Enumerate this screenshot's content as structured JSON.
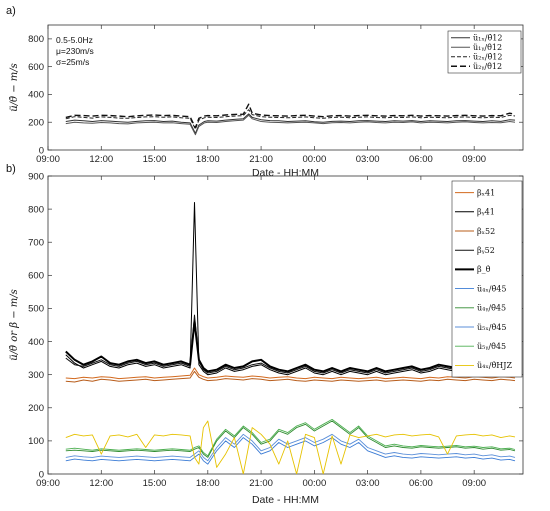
{
  "chart_data": [
    {
      "panel_label": "a)",
      "type": "line",
      "xlabel": "Date - HH:MM",
      "ylabel": "ü/θ̇ − m/s",
      "ylim": [
        0,
        900
      ],
      "yticks": [
        0,
        200,
        400,
        600,
        800
      ],
      "xlim": [
        9,
        35.75
      ],
      "xticks": [
        9,
        12,
        15,
        18,
        21,
        24,
        27,
        30,
        33,
        36
      ],
      "xticklabels": [
        "09:00",
        "12:00",
        "15:00",
        "18:00",
        "21:00",
        "00:00",
        "03:00",
        "06:00",
        "09:00",
        "12:00"
      ],
      "annotations": [
        "0.5-5.0Hz",
        "μ=230m/s",
        "σ=25m/s"
      ],
      "legend_position": "top-right",
      "x": [
        10.0,
        10.5,
        11.0,
        11.5,
        12.0,
        12.5,
        13.0,
        13.5,
        14.0,
        14.5,
        15.0,
        15.5,
        16.0,
        16.5,
        17.0,
        17.3,
        17.5,
        17.8,
        18.0,
        18.5,
        19.0,
        19.5,
        20.0,
        20.3,
        20.5,
        21.0,
        21.5,
        22.0,
        22.5,
        23.0,
        23.5,
        24.0,
        24.5,
        25.0,
        25.5,
        26.0,
        26.5,
        27.0,
        27.5,
        28.0,
        28.5,
        29.0,
        29.5,
        30.0,
        30.5,
        31.0,
        31.5,
        32.0,
        32.5,
        33.0,
        33.5,
        34.0,
        34.5,
        35.0,
        35.3
      ],
      "series": [
        {
          "name": "ü₁ₓ/θ̇12",
          "color": "#333333",
          "dash": "solid",
          "width": 1.0,
          "values": [
            205,
            215,
            210,
            205,
            212,
            208,
            204,
            200,
            206,
            210,
            212,
            205,
            208,
            200,
            195,
            120,
            180,
            205,
            210,
            208,
            215,
            220,
            225,
            260,
            235,
            218,
            212,
            210,
            205,
            208,
            210,
            204,
            200,
            206,
            208,
            205,
            210,
            212,
            208,
            205,
            210,
            208,
            212,
            205,
            210,
            208,
            205,
            210,
            212,
            208,
            205,
            210,
            206,
            218,
            215
          ]
        },
        {
          "name": "ü₁ᵧ/θ̇12",
          "color": "#555555",
          "dash": "solid",
          "width": 1.0,
          "values": [
            190,
            200,
            195,
            192,
            198,
            195,
            190,
            188,
            195,
            198,
            200,
            195,
            196,
            190,
            185,
            110,
            170,
            195,
            200,
            198,
            205,
            210,
            215,
            250,
            225,
            205,
            200,
            198,
            195,
            198,
            200,
            195,
            190,
            196,
            198,
            195,
            200,
            202,
            198,
            195,
            200,
            198,
            202,
            195,
            200,
            198,
            195,
            200,
            202,
            198,
            195,
            198,
            196,
            205,
            200
          ]
        },
        {
          "name": "ü₂ₓ/θ̇12",
          "color": "#222222",
          "dash": "4,2",
          "width": 1.0,
          "values": [
            225,
            240,
            235,
            230,
            238,
            235,
            230,
            228,
            234,
            238,
            240,
            236,
            238,
            232,
            228,
            150,
            215,
            232,
            236,
            234,
            240,
            244,
            248,
            290,
            255,
            240,
            236,
            234,
            232,
            235,
            238,
            232,
            228,
            234,
            236,
            232,
            236,
            238,
            234,
            232,
            236,
            234,
            238,
            232,
            236,
            234,
            232,
            236,
            238,
            234,
            232,
            236,
            234,
            250,
            245
          ]
        },
        {
          "name": "ü₂ᵧ/θ̇12",
          "color": "#111111",
          "dash": "6,3",
          "width": 1.4,
          "values": [
            235,
            250,
            248,
            244,
            250,
            248,
            244,
            240,
            246,
            250,
            252,
            248,
            250,
            244,
            240,
            160,
            228,
            244,
            248,
            246,
            252,
            256,
            258,
            330,
            265,
            252,
            248,
            246,
            244,
            248,
            250,
            244,
            240,
            246,
            248,
            244,
            248,
            250,
            246,
            244,
            248,
            246,
            250,
            244,
            248,
            246,
            244,
            248,
            250,
            246,
            244,
            248,
            246,
            265,
            258
          ]
        }
      ]
    },
    {
      "panel_label": "b)",
      "type": "line",
      "xlabel": "Date - HH:MM",
      "ylabel": "ü/θ̇ or β − m/s",
      "ylim": [
        0,
        900
      ],
      "yticks": [
        0,
        100,
        200,
        300,
        400,
        500,
        600,
        700,
        800,
        900
      ],
      "xlim": [
        9,
        35.75
      ],
      "xticks": [
        9,
        12,
        15,
        18,
        21,
        24,
        27,
        30,
        33,
        36
      ],
      "xticklabels": [
        "09:00",
        "12:00",
        "15:00",
        "18:00",
        "21:00",
        "00:00",
        "03:00",
        "06:00",
        "09:00",
        "12:00"
      ],
      "legend_position": "top-right",
      "x": [
        10.0,
        10.5,
        11.0,
        11.5,
        12.0,
        12.5,
        13.0,
        13.5,
        14.0,
        14.5,
        15.0,
        15.5,
        16.0,
        16.5,
        17.0,
        17.25,
        17.5,
        17.75,
        18.0,
        18.5,
        19.0,
        19.5,
        20.0,
        20.5,
        21.0,
        21.5,
        22.0,
        22.5,
        23.0,
        23.5,
        24.0,
        24.5,
        25.0,
        25.5,
        26.0,
        26.5,
        27.0,
        27.5,
        28.0,
        28.5,
        29.0,
        29.5,
        30.0,
        30.5,
        31.0,
        31.5,
        32.0,
        32.5,
        33.0,
        33.5,
        34.0,
        34.5,
        35.0,
        35.3
      ],
      "series": [
        {
          "name": "βₓ41",
          "color": "#d2691e",
          "dash": "solid",
          "width": 1.0,
          "values": [
            290,
            288,
            292,
            290,
            294,
            292,
            288,
            290,
            292,
            294,
            290,
            292,
            294,
            296,
            298,
            320,
            300,
            294,
            290,
            292,
            296,
            294,
            292,
            296,
            294,
            290,
            292,
            294,
            290,
            288,
            292,
            290,
            288,
            292,
            290,
            288,
            290,
            292,
            288,
            290,
            292,
            290,
            288,
            292,
            290,
            294,
            292,
            290,
            294,
            292,
            290,
            294,
            292,
            290
          ]
        },
        {
          "name": "βᵧ41",
          "color": "#000000",
          "dash": "solid",
          "width": 1.0,
          "values": [
            360,
            335,
            320,
            330,
            340,
            325,
            320,
            330,
            335,
            325,
            330,
            320,
            325,
            330,
            320,
            820,
            330,
            310,
            300,
            305,
            320,
            310,
            315,
            325,
            330,
            315,
            305,
            300,
            310,
            320,
            305,
            300,
            310,
            300,
            310,
            305,
            300,
            310,
            300,
            305,
            310,
            315,
            305,
            310,
            320,
            315,
            310,
            325,
            340,
            350,
            330,
            335,
            340,
            320
          ]
        },
        {
          "name": "βₓ52",
          "color": "#b85c1a",
          "dash": "solid",
          "width": 1.0,
          "values": [
            280,
            278,
            284,
            280,
            286,
            284,
            280,
            282,
            284,
            286,
            282,
            284,
            286,
            288,
            290,
            310,
            292,
            286,
            282,
            284,
            288,
            286,
            284,
            288,
            286,
            282,
            284,
            286,
            282,
            280,
            284,
            282,
            280,
            284,
            282,
            280,
            282,
            284,
            280,
            282,
            284,
            282,
            280,
            284,
            282,
            286,
            284,
            282,
            286,
            284,
            282,
            286,
            284,
            282
          ]
        },
        {
          "name": "βᵧ52",
          "color": "#111111",
          "dash": "solid",
          "width": 1.0,
          "values": [
            350,
            330,
            325,
            335,
            345,
            330,
            325,
            335,
            340,
            330,
            335,
            325,
            330,
            335,
            325,
            480,
            340,
            315,
            305,
            310,
            325,
            315,
            320,
            330,
            335,
            320,
            310,
            305,
            315,
            325,
            310,
            305,
            315,
            305,
            315,
            310,
            305,
            315,
            305,
            310,
            315,
            320,
            310,
            315,
            325,
            320,
            315,
            330,
            345,
            355,
            335,
            340,
            345,
            325
          ]
        },
        {
          "name": "β_θ̇",
          "color": "#000000",
          "dash": "solid",
          "width": 2.0,
          "values": [
            370,
            345,
            330,
            340,
            355,
            335,
            330,
            340,
            345,
            335,
            340,
            330,
            335,
            340,
            330,
            460,
            345,
            320,
            310,
            315,
            330,
            320,
            325,
            340,
            345,
            325,
            315,
            310,
            320,
            330,
            315,
            310,
            320,
            310,
            320,
            315,
            310,
            320,
            310,
            315,
            320,
            325,
            315,
            320,
            330,
            325,
            320,
            335,
            350,
            360,
            340,
            345,
            350,
            330
          ]
        },
        {
          "name": "ü₄ₓ/θ̇45",
          "color": "#3a7bd5",
          "dash": "solid",
          "width": 0.9,
          "values": [
            40,
            45,
            42,
            40,
            44,
            42,
            40,
            42,
            44,
            42,
            40,
            42,
            44,
            42,
            40,
            50,
            60,
            40,
            30,
            70,
            100,
            80,
            110,
            90,
            60,
            70,
            95,
            80,
            90,
            100,
            85,
            95,
            110,
            90,
            80,
            95,
            70,
            60,
            50,
            55,
            50,
            48,
            52,
            50,
            48,
            50,
            52,
            48,
            50,
            45,
            48,
            42,
            44,
            40
          ]
        },
        {
          "name": "ü₄ᵧ/θ̇45",
          "color": "#2e8b2e",
          "dash": "solid",
          "width": 0.9,
          "values": [
            70,
            72,
            70,
            68,
            72,
            70,
            68,
            70,
            72,
            70,
            68,
            70,
            72,
            70,
            68,
            75,
            80,
            60,
            50,
            100,
            130,
            110,
            140,
            120,
            90,
            100,
            130,
            120,
            140,
            150,
            130,
            145,
            160,
            140,
            120,
            140,
            110,
            95,
            80,
            85,
            80,
            78,
            82,
            80,
            78,
            80,
            82,
            78,
            80,
            75,
            78,
            72,
            74,
            70
          ]
        },
        {
          "name": "ü₅ₓ/θ̇45",
          "color": "#5b8fd9",
          "dash": "solid",
          "width": 0.9,
          "values": [
            50,
            55,
            52,
            50,
            54,
            52,
            50,
            52,
            54,
            52,
            50,
            52,
            54,
            52,
            50,
            60,
            70,
            50,
            40,
            80,
            110,
            90,
            120,
            100,
            70,
            80,
            105,
            90,
            100,
            110,
            95,
            105,
            120,
            100,
            90,
            105,
            80,
            70,
            60,
            65,
            60,
            58,
            62,
            60,
            58,
            60,
            62,
            58,
            60,
            55,
            58,
            52,
            54,
            50
          ]
        },
        {
          "name": "ü₅ᵧ/θ̇45",
          "color": "#4caf50",
          "dash": "solid",
          "width": 0.9,
          "values": [
            75,
            78,
            75,
            72,
            76,
            74,
            72,
            74,
            76,
            74,
            72,
            74,
            76,
            74,
            72,
            80,
            85,
            65,
            55,
            105,
            135,
            115,
            145,
            125,
            95,
            105,
            135,
            125,
            145,
            155,
            135,
            150,
            165,
            145,
            125,
            145,
            115,
            100,
            85,
            90,
            85,
            82,
            86,
            84,
            82,
            84,
            86,
            82,
            84,
            80,
            82,
            76,
            78,
            74
          ]
        },
        {
          "name": "ü₄ₓ/θ̇HJZ",
          "color": "#e6c200",
          "dash": "solid",
          "width": 0.9,
          "values": [
            110,
            120,
            115,
            118,
            60,
            115,
            118,
            112,
            120,
            80,
            118,
            115,
            120,
            118,
            115,
            50,
            30,
            140,
            160,
            20,
            60,
            110,
            0,
            140,
            120,
            90,
            30,
            100,
            0,
            120,
            110,
            0,
            115,
            30,
            118,
            110,
            115,
            120,
            112,
            118,
            120,
            115,
            118,
            120,
            112,
            60,
            115,
            118,
            120,
            115,
            118,
            110,
            115,
            112
          ]
        }
      ]
    }
  ]
}
